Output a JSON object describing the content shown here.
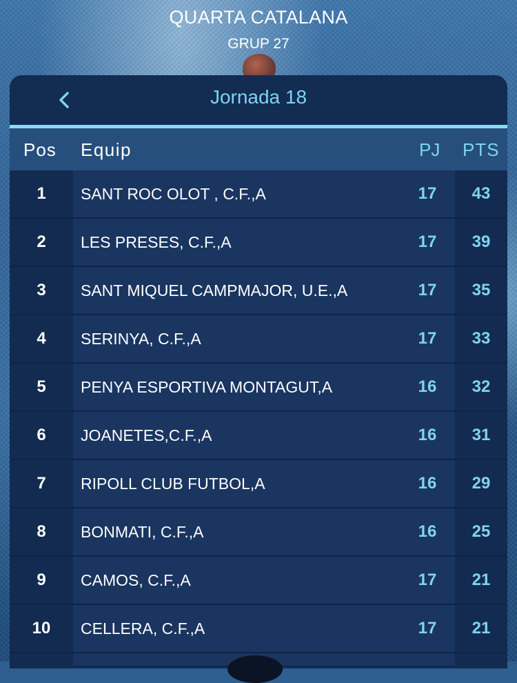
{
  "header": {
    "league": "QUARTA CATALANA",
    "group": "GRUP 27"
  },
  "round": {
    "title": "Jornada 18",
    "back_icon": "chevron-left-icon"
  },
  "table": {
    "columns": {
      "pos": "Pos",
      "team": "Equip",
      "played": "PJ",
      "points": "PTS"
    },
    "rows": [
      {
        "pos": "1",
        "team": "SANT ROC OLOT , C.F.,A",
        "played": "17",
        "points": "43"
      },
      {
        "pos": "2",
        "team": "LES PRESES, C.F.,A",
        "played": "17",
        "points": "39"
      },
      {
        "pos": "3",
        "team": "SANT MIQUEL CAMPMAJOR, U.E.,A",
        "played": "17",
        "points": "35"
      },
      {
        "pos": "4",
        "team": "SERINYA, C.F.,A",
        "played": "17",
        "points": "33"
      },
      {
        "pos": "5",
        "team": "PENYA ESPORTIVA MONTAGUT,A",
        "played": "16",
        "points": "32"
      },
      {
        "pos": "6",
        "team": "JOANETES,C.F.,A",
        "played": "16",
        "points": "31"
      },
      {
        "pos": "7",
        "team": "RIPOLL CLUB FUTBOL,A",
        "played": "16",
        "points": "29"
      },
      {
        "pos": "8",
        "team": "BONMATI, C.F.,A",
        "played": "16",
        "points": "25"
      },
      {
        "pos": "9",
        "team": "CAMOS, C.F.,A",
        "played": "17",
        "points": "21"
      },
      {
        "pos": "10",
        "team": "CELLERA, C.F.,A",
        "played": "17",
        "points": "21"
      }
    ]
  },
  "colors": {
    "accent": "#7fd4f0",
    "panel": "#15305a",
    "header_row": "#264f7e"
  }
}
